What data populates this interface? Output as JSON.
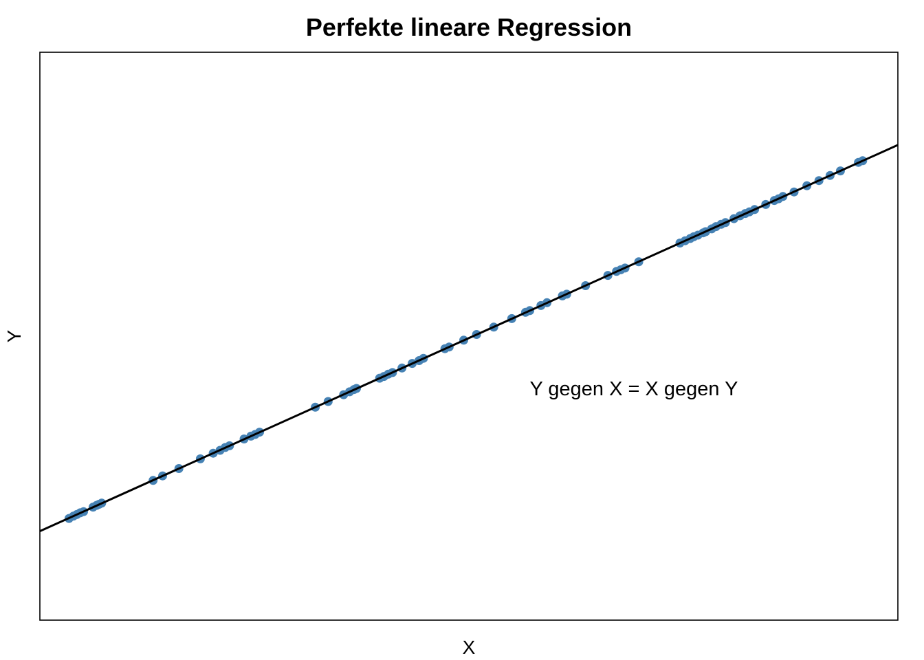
{
  "chart_data": {
    "type": "scatter",
    "title": "Perfekte lineare Regression",
    "xlabel": "X",
    "ylabel": "Y",
    "annotation": "Y gegen X = X gegen Y",
    "xlim": [
      0,
      100
    ],
    "ylim": [
      0,
      100
    ],
    "axes_ticks": false,
    "grid": false,
    "point_color": "#4682B4",
    "line_color": "#000000",
    "regression_line": {
      "intercept": 15.67,
      "slope": 0.68
    },
    "series": [
      {
        "x": [
          3.4,
          3.9,
          4.3,
          4.7,
          5.1,
          6.2,
          6.6,
          6.9,
          7.2,
          13.2,
          14.3,
          16.2,
          18.7,
          20.2,
          21.0,
          21.6,
          22.1,
          23.8,
          24.6,
          25.1,
          25.6,
          32.1,
          33.6,
          35.4,
          36.1,
          36.6,
          36.9,
          39.6,
          40.1,
          40.6,
          41.1,
          42.2,
          43.4,
          44.2,
          44.7,
          47.2,
          47.7,
          49.4,
          50.9,
          52.9,
          55.0,
          56.6,
          57.1,
          58.4,
          59.1,
          60.9,
          61.4,
          63.6,
          66.2,
          67.2,
          67.7,
          68.2,
          69.8,
          74.6,
          75.2,
          75.8,
          76.2,
          76.7,
          77.3,
          77.6,
          78.3,
          78.8,
          79.4,
          79.9,
          80.9,
          81.6,
          82.2,
          82.7,
          83.3,
          84.6,
          85.6,
          86.1,
          86.6,
          87.9,
          89.4,
          90.8,
          92.1,
          93.3,
          95.4,
          95.9
        ],
        "y": [
          17.9,
          18.3,
          18.6,
          18.9,
          19.1,
          19.9,
          20.2,
          20.4,
          20.6,
          24.6,
          25.4,
          26.7,
          28.4,
          29.4,
          29.9,
          30.4,
          30.7,
          31.9,
          32.4,
          32.7,
          33.1,
          37.5,
          38.5,
          39.7,
          40.2,
          40.6,
          40.8,
          42.6,
          42.9,
          43.3,
          43.6,
          44.4,
          45.2,
          45.7,
          46.1,
          47.8,
          48.1,
          49.3,
          50.3,
          51.6,
          53.1,
          54.2,
          54.5,
          55.4,
          55.9,
          57.1,
          57.4,
          58.9,
          60.7,
          61.4,
          61.7,
          62.0,
          63.1,
          66.4,
          66.8,
          67.2,
          67.5,
          67.8,
          68.2,
          68.4,
          68.9,
          69.3,
          69.7,
          70.0,
          70.7,
          71.2,
          71.6,
          71.9,
          72.3,
          73.2,
          73.9,
          74.2,
          74.6,
          75.4,
          76.5,
          77.4,
          78.3,
          79.1,
          80.6,
          80.9
        ]
      }
    ]
  }
}
